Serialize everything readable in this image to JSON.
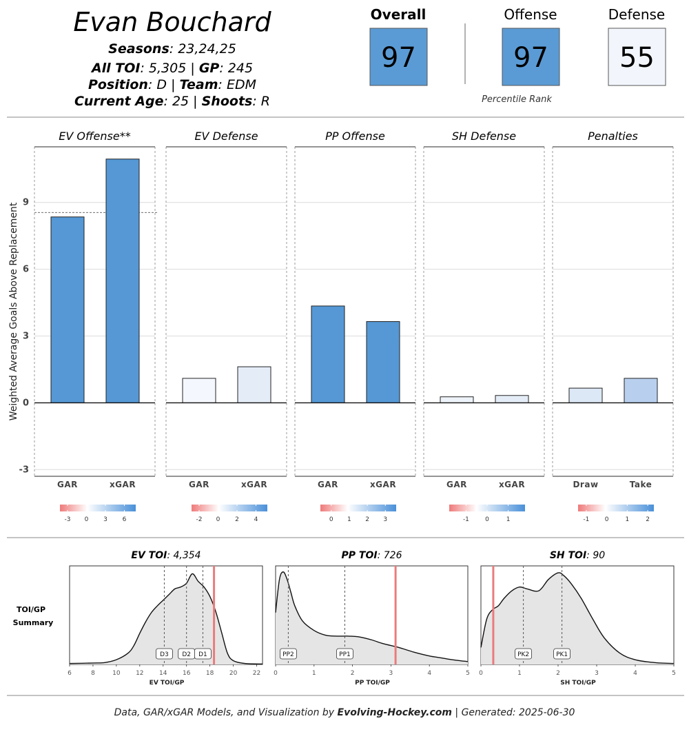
{
  "player": {
    "name": "Evan Bouchard",
    "seasons_label": "Seasons",
    "seasons": "23,24,25",
    "toi_label": "All TOI",
    "toi": "5,305",
    "gp_label": "GP",
    "gp": "245",
    "position_label": "Position",
    "position": "D",
    "team_label": "Team",
    "team": "EDM",
    "age_label": "Current Age",
    "age": "25",
    "shoots_label": "Shoots",
    "shoots": "R"
  },
  "ratings": {
    "overall_label": "Overall",
    "overall": "97",
    "offense_label": "Offense",
    "offense": "97",
    "defense_label": "Defense",
    "defense": "55",
    "caption": "Percentile Rank",
    "colors": {
      "high": "#5b9bd5",
      "low": "#f2f6fc"
    }
  },
  "chart_data": [
    {
      "type": "bar",
      "ylabel": "Weighted Average Goals Above Replacement",
      "ylim": [
        -3.3,
        11.5
      ],
      "yticks": [
        -3,
        0,
        3,
        6,
        9
      ],
      "grid": true,
      "panels": [
        {
          "title": "EV Offense**",
          "categories": [
            "GAR",
            "xGAR"
          ],
          "values": [
            8.35,
            10.95
          ],
          "reference_line": 8.55,
          "bar_colors": [
            "#5598d5",
            "#5598d5"
          ],
          "legend": {
            "ticks": [
              "-3",
              "0",
              "3",
              "6"
            ],
            "tick_values": [
              -3,
              0,
              3,
              6
            ],
            "range": [
              -4.2,
              7.8
            ]
          }
        },
        {
          "title": "EV Defense",
          "categories": [
            "GAR",
            "xGAR"
          ],
          "values": [
            1.1,
            1.62
          ],
          "bar_colors": [
            "#f4f7fd",
            "#e4ecf7"
          ],
          "legend": {
            "ticks": [
              "-2",
              "0",
              "2",
              "4"
            ],
            "tick_values": [
              -2,
              0,
              2,
              4
            ],
            "range": [
              -2.8,
              5.2
            ]
          }
        },
        {
          "title": "PP Offense",
          "categories": [
            "GAR",
            "xGAR"
          ],
          "values": [
            4.35,
            3.65
          ],
          "bar_colors": [
            "#5598d5",
            "#5598d5"
          ],
          "legend": {
            "ticks": [
              "0",
              "1",
              "2",
              "3"
            ],
            "tick_values": [
              0,
              1,
              2,
              3
            ],
            "range": [
              -0.6,
              3.6
            ]
          }
        },
        {
          "title": "SH Defense",
          "categories": [
            "GAR",
            "xGAR"
          ],
          "values": [
            0.27,
            0.33
          ],
          "bar_colors": [
            "#eef3fa",
            "#e4ecf7"
          ],
          "legend": {
            "ticks": [
              "-1",
              "0",
              "1"
            ],
            "tick_values": [
              -1,
              0,
              1
            ],
            "range": [
              -1.8,
              1.8
            ]
          }
        },
        {
          "title": "Penalties",
          "categories": [
            "Draw",
            "Take"
          ],
          "values": [
            0.66,
            1.1
          ],
          "bar_colors": [
            "#dde8f6",
            "#b8d0ee"
          ],
          "legend": {
            "ticks": [
              "-1",
              "0",
              "1",
              "2"
            ],
            "tick_values": [
              -1,
              0,
              1,
              2
            ],
            "range": [
              -1.4,
              2.3
            ]
          }
        }
      ]
    },
    {
      "type": "area",
      "row_label": [
        "TOI/GP",
        "Summary"
      ],
      "panels": [
        {
          "title_bold": "EV TOI",
          "title_value": "4,354",
          "xlabel": "EV TOI/GP",
          "xlim": [
            6,
            22.5
          ],
          "xticks": [
            6,
            8,
            10,
            12,
            14,
            16,
            18,
            20,
            22
          ],
          "x": [
            6,
            8,
            9,
            10,
            11,
            11.5,
            12,
            12.5,
            13,
            13.5,
            14,
            14.5,
            15,
            15.5,
            16,
            16.5,
            17,
            17.5,
            18,
            18.5,
            19,
            19.5,
            20,
            21,
            22.5
          ],
          "y": [
            0.01,
            0.015,
            0.02,
            0.05,
            0.12,
            0.2,
            0.33,
            0.45,
            0.55,
            0.62,
            0.68,
            0.74,
            0.8,
            0.82,
            0.86,
            0.96,
            0.88,
            0.82,
            0.72,
            0.56,
            0.34,
            0.12,
            0.04,
            0.01,
            0.005
          ],
          "markers": [
            {
              "label": "D3",
              "x": 14.1
            },
            {
              "label": "D2",
              "x": 16.0
            },
            {
              "label": "D1",
              "x": 17.4
            }
          ],
          "player_value": 18.35
        },
        {
          "title_bold": "PP TOI",
          "title_value": "726",
          "xlabel": "PP TOI/GP",
          "xlim": [
            0,
            5
          ],
          "xticks": [
            0,
            1,
            2,
            3,
            4,
            5
          ],
          "x": [
            0,
            0.1,
            0.2,
            0.3,
            0.4,
            0.5,
            0.7,
            1,
            1.3,
            1.6,
            1.9,
            2.2,
            2.5,
            2.8,
            3.2,
            3.6,
            4,
            4.3,
            4.6,
            5
          ],
          "y": [
            0.55,
            0.9,
            0.98,
            0.9,
            0.76,
            0.62,
            0.46,
            0.36,
            0.31,
            0.3,
            0.3,
            0.29,
            0.26,
            0.22,
            0.18,
            0.13,
            0.09,
            0.07,
            0.05,
            0.03
          ],
          "markers": [
            {
              "label": "PP2",
              "x": 0.33
            },
            {
              "label": "PP1",
              "x": 1.8
            }
          ],
          "player_value": 3.12
        },
        {
          "title_bold": "SH TOI",
          "title_value": "90",
          "xlabel": "SH TOI/GP",
          "xlim": [
            0,
            5
          ],
          "xticks": [
            0,
            1,
            2,
            3,
            4,
            5
          ],
          "x": [
            0,
            0.15,
            0.3,
            0.45,
            0.6,
            0.8,
            1,
            1.2,
            1.5,
            1.75,
            2,
            2.15,
            2.35,
            2.6,
            2.9,
            3.2,
            3.6,
            4,
            4.5,
            5
          ],
          "y": [
            0.18,
            0.48,
            0.58,
            0.62,
            0.7,
            0.78,
            0.82,
            0.8,
            0.78,
            0.9,
            0.97,
            0.94,
            0.85,
            0.7,
            0.48,
            0.28,
            0.12,
            0.05,
            0.02,
            0.01
          ],
          "markers": [
            {
              "label": "PK2",
              "x": 1.1
            },
            {
              "label": "PK1",
              "x": 2.1
            }
          ],
          "player_value": 0.32
        }
      ]
    }
  ],
  "footer": {
    "prefix": "Data, GAR/xGAR Models, and Visualization by ",
    "brand": "Evolving-Hockey.com",
    "suffix": " | Generated: 2025-06-30"
  }
}
